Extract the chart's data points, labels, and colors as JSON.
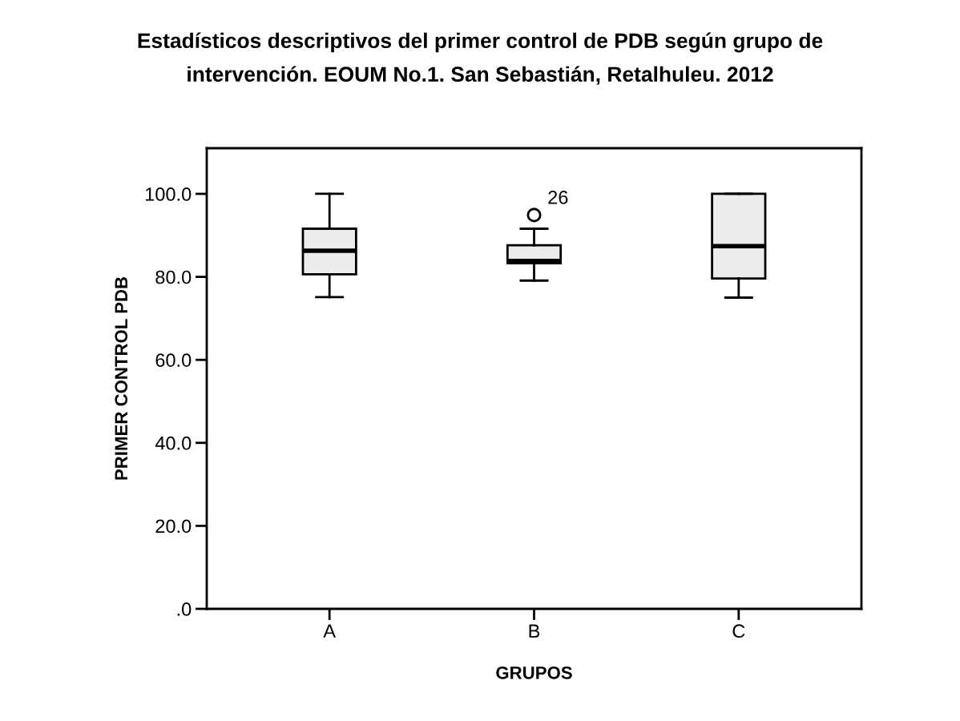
{
  "chart_data": {
    "type": "box",
    "title": "Estadísticos descriptivos del primer control de PDB según grupo de\nintervención. EOUM No.1. San Sebastián, Retalhuleu. 2012",
    "xlabel": "GRUPOS",
    "ylabel": "PRIMER CONTROL PDB",
    "categories": [
      "A",
      "B",
      "C"
    ],
    "boxes": [
      {
        "low": 75.1,
        "q1": 80.6,
        "median": 86.3,
        "q3": 91.6,
        "high": 100
      },
      {
        "low": 79.1,
        "q1": 83.3,
        "median": 83.8,
        "q3": 87.6,
        "high": 91.6,
        "outliers": [
          94.9
        ]
      },
      {
        "low": 75.0,
        "q1": 79.6,
        "median": 87.4,
        "q3": 100,
        "high": 100
      }
    ],
    "color": "#ececec",
    "ylim": [
      0,
      111
    ],
    "yticks": [
      {
        "value": 0,
        "label": ".0"
      },
      {
        "value": 20,
        "label": "20.0"
      },
      {
        "value": 40,
        "label": "40.0"
      },
      {
        "value": 60,
        "label": "60.0"
      },
      {
        "value": 80,
        "label": "80.0"
      },
      {
        "value": 100,
        "label": "100.0"
      }
    ],
    "grid": false,
    "annotations": [
      "26"
    ]
  }
}
